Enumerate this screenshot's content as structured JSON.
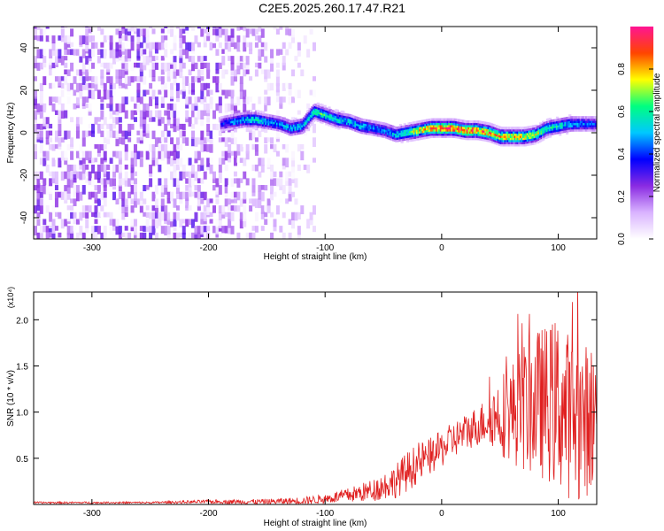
{
  "title": "C2E5.2025.260.17.47.R21",
  "chart_data": [
    {
      "type": "heatmap",
      "xlabel": "Height of straight line (km)",
      "ylabel": "Frequency (Hz)",
      "xlim": [
        -350,
        133
      ],
      "ylim": [
        -50,
        50
      ],
      "xticks": [
        "-300",
        "-200",
        "-100",
        "0",
        "100"
      ],
      "yticks": [
        "40",
        "20",
        "0",
        "-20",
        "-40"
      ],
      "colorbar": {
        "label": "Normalized spectral amplitude",
        "range": [
          0,
          1
        ],
        "ticks": [
          "0.0",
          "0.2",
          "0.4",
          "0.6",
          "0.8"
        ],
        "colors": [
          "#ffffff",
          "#d9b3ff",
          "#8a2be2",
          "#0000ff",
          "#00c8ff",
          "#00ff80",
          "#ffff00",
          "#ff4500",
          "#ff1493"
        ]
      },
      "noise_region_km": [
        -350,
        -110
      ],
      "signal_track": {
        "x": [
          -190,
          -180,
          -170,
          -160,
          -150,
          -140,
          -130,
          -120,
          -110,
          -100,
          -90,
          -80,
          -70,
          -60,
          -50,
          -40,
          -30,
          -20,
          -10,
          0,
          10,
          20,
          30,
          40,
          50,
          60,
          70,
          80,
          90,
          100,
          110,
          120,
          133
        ],
        "y": [
          4,
          5,
          6,
          6,
          5,
          4,
          2,
          3,
          10,
          8,
          6,
          5,
          3,
          2,
          1,
          -1,
          0,
          1,
          2,
          2,
          2,
          1,
          1,
          0,
          -2,
          -2,
          -2,
          -1,
          2,
          3,
          4,
          4,
          4
        ],
        "amplitude": [
          0.35,
          0.45,
          0.5,
          0.55,
          0.5,
          0.45,
          0.5,
          0.55,
          0.6,
          0.6,
          0.55,
          0.5,
          0.5,
          0.45,
          0.45,
          0.5,
          0.6,
          0.75,
          0.85,
          0.9,
          0.9,
          0.9,
          0.85,
          0.8,
          0.8,
          0.75,
          0.75,
          0.7,
          0.6,
          0.55,
          0.5,
          0.45,
          0.4
        ]
      }
    },
    {
      "type": "line",
      "xlabel": "Height of straight line (km)",
      "ylabel": "SNR (10 * v/v)",
      "yscale_label": "(x10⁴)",
      "xlim": [
        -350,
        133
      ],
      "ylim": [
        0,
        2.3
      ],
      "xticks": [
        "-300",
        "-200",
        "-100",
        "0",
        "100"
      ],
      "yticks": [
        "0.5",
        "1.0",
        "1.5",
        "2.0"
      ],
      "color": "#e02020",
      "series": [
        {
          "x": [
            -350,
            -300,
            -250,
            -200,
            -150,
            -120,
            -100,
            -80,
            -60,
            -50,
            -40,
            -30,
            -20,
            -10,
            0,
            10,
            20,
            30,
            40,
            50,
            60,
            70,
            80,
            90,
            100,
            110,
            120,
            133
          ],
          "y_mean": [
            0.02,
            0.02,
            0.02,
            0.03,
            0.03,
            0.04,
            0.06,
            0.1,
            0.15,
            0.2,
            0.25,
            0.35,
            0.45,
            0.52,
            0.6,
            0.7,
            0.78,
            0.85,
            0.92,
            0.98,
            1.0,
            1.05,
            1.1,
            1.1,
            1.1,
            0.95,
            0.9,
            0.95
          ],
          "y_spread": [
            0.01,
            0.01,
            0.01,
            0.02,
            0.03,
            0.04,
            0.05,
            0.08,
            0.12,
            0.15,
            0.18,
            0.22,
            0.22,
            0.2,
            0.2,
            0.2,
            0.2,
            0.22,
            0.25,
            0.45,
            0.55,
            0.7,
            0.8,
            0.85,
            0.95,
            0.9,
            0.85,
            0.8
          ]
        }
      ]
    }
  ]
}
